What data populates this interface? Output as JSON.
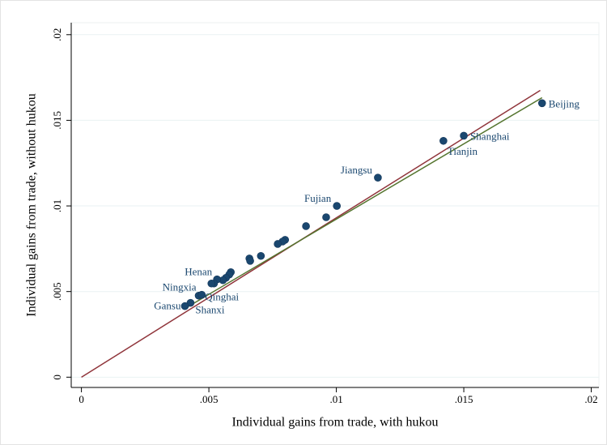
{
  "chart_data": {
    "type": "scatter",
    "xlabel": "Individual gains from trade, with hukou",
    "ylabel": "Individual gains from trade, without hukou",
    "xlim": [
      -0.0004,
      0.0203
    ],
    "ylim": [
      -0.0006,
      0.0207
    ],
    "xticks": [
      0,
      {
        "value": 0.005,
        "label": ".005"
      },
      {
        "value": 0.01,
        "label": ".01"
      },
      {
        "value": 0.015,
        "label": ".015"
      },
      {
        "value": 0.02,
        "label": ".02"
      }
    ],
    "yticks": [
      0,
      {
        "value": 0.005,
        "label": ".005"
      },
      {
        "value": 0.01,
        "label": ".01"
      },
      {
        "value": 0.015,
        "label": ".015"
      },
      {
        "value": 0.02,
        "label": ".02"
      }
    ],
    "grid": true,
    "series": [
      {
        "color": "#1a476f",
        "x": [
          0.01807,
          0.015,
          0.0142,
          0.01163,
          0.01002,
          0.0096,
          0.00881,
          0.00799,
          0.00789,
          0.0077,
          0.00704,
          0.00659,
          0.00662,
          0.00586,
          0.0058,
          0.00567,
          0.00555,
          0.00532,
          0.0052,
          0.0051,
          0.0046,
          0.00472,
          0.00428,
          0.00406
        ],
        "values": [
          0.016,
          0.0141,
          0.0138,
          0.01165,
          0.01,
          0.00934,
          0.00882,
          0.00802,
          0.00792,
          0.00778,
          0.00708,
          0.00693,
          0.00679,
          0.00613,
          0.00599,
          0.0058,
          0.00566,
          0.00571,
          0.00547,
          0.00547,
          0.00476,
          0.00481,
          0.00434,
          0.00415
        ],
        "labels": [
          "Beijing",
          "Shanghai",
          "Tianjin",
          "Jiangsu",
          "Fujian",
          null,
          null,
          null,
          null,
          null,
          null,
          null,
          null,
          null,
          null,
          null,
          null,
          "Henan",
          null,
          null,
          "Ningxia",
          "Qinghai",
          "Shanxi",
          "Gansu"
        ]
      }
    ],
    "lines": [
      {
        "color": "#90353b",
        "x": [
          0,
          0.018
        ],
        "values": [
          0,
          0.01675
        ]
      },
      {
        "color": "#55752f",
        "x": [
          0.00406,
          0.01807
        ],
        "values": [
          0.00401,
          0.01632
        ]
      }
    ]
  }
}
